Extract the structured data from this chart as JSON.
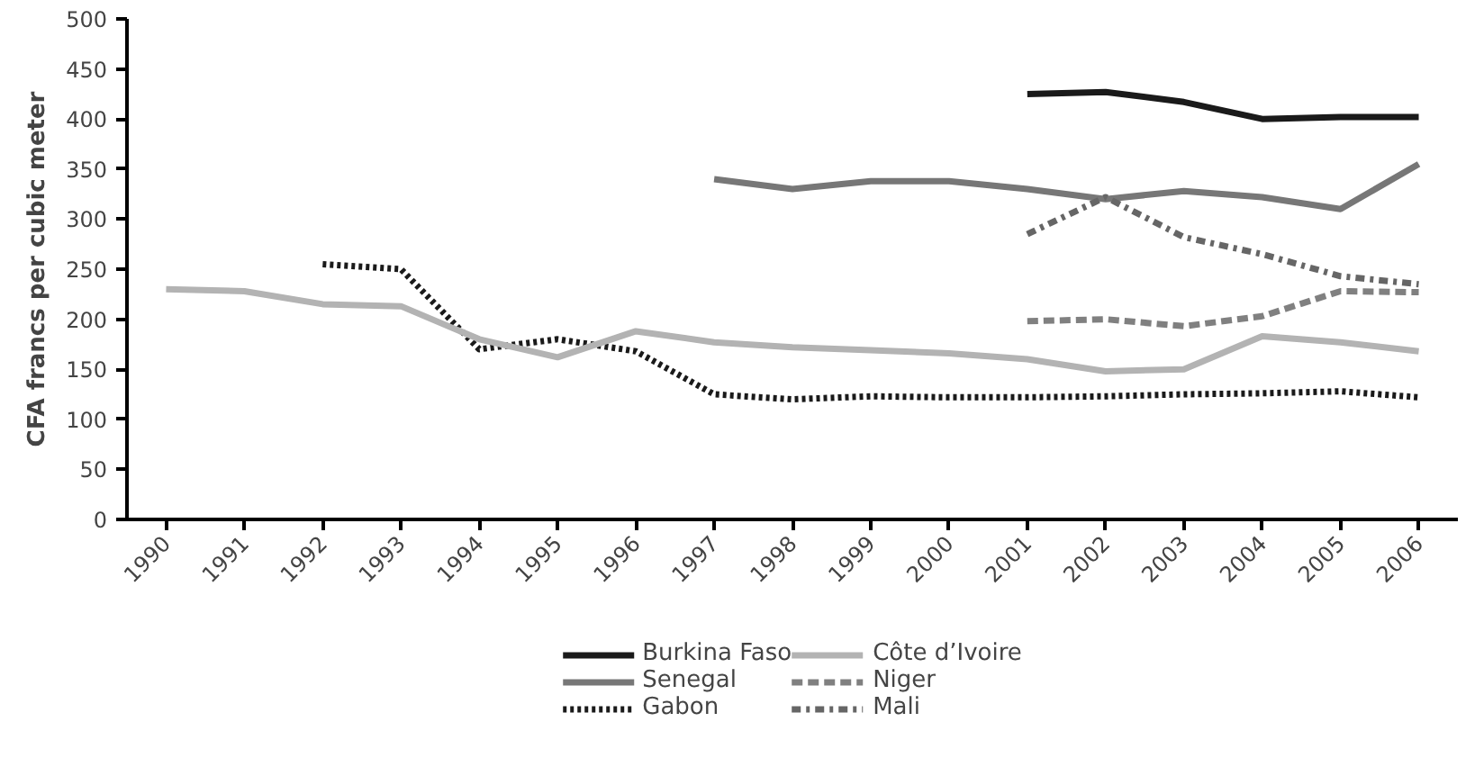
{
  "chart_data": {
    "type": "line",
    "ylabel": "CFA francs per cubic meter",
    "categories": [
      "1990",
      "1991",
      "1992",
      "1993",
      "1994",
      "1995",
      "1996",
      "1997",
      "1998",
      "1999",
      "2000",
      "2001",
      "2002",
      "2003",
      "2004",
      "2005",
      "2006"
    ],
    "ylim": [
      0,
      500
    ],
    "yticks": [
      0,
      50,
      100,
      150,
      200,
      250,
      300,
      350,
      400,
      450,
      500
    ],
    "grid": false,
    "legend": "bottom",
    "series": [
      {
        "name": "Burkina Faso",
        "color": "#1a1a1a",
        "line_style": "solid",
        "values": [
          null,
          null,
          null,
          null,
          null,
          null,
          null,
          null,
          null,
          null,
          null,
          425,
          427,
          417,
          400,
          402,
          402
        ]
      },
      {
        "name": "Senegal",
        "color": "#777777",
        "line_style": "solid",
        "values": [
          null,
          null,
          null,
          null,
          null,
          null,
          null,
          340,
          330,
          338,
          338,
          330,
          320,
          328,
          322,
          310,
          355
        ]
      },
      {
        "name": "Gabon",
        "color": "#1a1a1a",
        "line_style": "dotted",
        "values": [
          null,
          null,
          255,
          250,
          170,
          180,
          168,
          125,
          120,
          123,
          122,
          122,
          123,
          125,
          126,
          128,
          122
        ]
      },
      {
        "name": "Côte d’Ivoire",
        "color": "#b3b3b3",
        "line_style": "solid",
        "values": [
          230,
          228,
          215,
          213,
          180,
          162,
          188,
          177,
          172,
          169,
          166,
          160,
          148,
          150,
          183,
          177,
          168
        ]
      },
      {
        "name": "Niger",
        "color": "#808080",
        "line_style": "dashed",
        "values": [
          null,
          null,
          null,
          null,
          null,
          null,
          null,
          null,
          null,
          null,
          null,
          198,
          200,
          193,
          203,
          228,
          227
        ]
      },
      {
        "name": "Mali",
        "color": "#666666",
        "line_style": "dashdot",
        "values": [
          null,
          null,
          null,
          null,
          null,
          null,
          null,
          null,
          null,
          null,
          null,
          285,
          322,
          282,
          265,
          243,
          235
        ]
      }
    ]
  }
}
